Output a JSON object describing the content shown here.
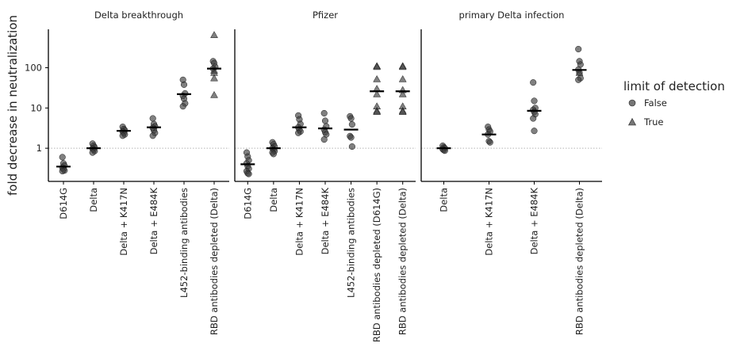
{
  "chart_data": {
    "type": "scatter",
    "ylabel": "fold decrease in neutralization",
    "y_scale": "log",
    "ylim": [
      0.15,
      900
    ],
    "y_ticks": [
      1,
      10,
      100
    ],
    "y_tick_labels": [
      "1",
      "10",
      "100"
    ],
    "reference_line_y": 1,
    "grid": false,
    "legend": {
      "title": "limit of detection",
      "position": "right",
      "entries": [
        {
          "label": "False",
          "marker": "circle"
        },
        {
          "label": "True",
          "marker": "triangle"
        }
      ]
    },
    "colors": {
      "points": "#3c3c3c",
      "median": "#000000",
      "reference": "#b4b4b4"
    },
    "panels": [
      {
        "title": "Delta breakthrough",
        "categories": [
          "D614G",
          "Delta",
          "Delta + K417N",
          "Delta + E484K",
          "L452-binding antibodies",
          "RBD antibodies depleted (Delta)"
        ],
        "medians": [
          0.35,
          1.0,
          2.7,
          3.3,
          22,
          95
        ],
        "points": [
          [
            0.6,
            0.42,
            0.37,
            0.33,
            0.3,
            0.28,
            0.27
          ],
          [
            1.3,
            1.15,
            1.05,
            0.98,
            0.92,
            0.85,
            0.78
          ],
          [
            3.4,
            3.0,
            2.8,
            2.6,
            2.4,
            2.2,
            2.05
          ],
          [
            5.5,
            4.0,
            3.5,
            3.2,
            2.8,
            2.4,
            2.05
          ],
          [
            50,
            38,
            23,
            20,
            17,
            13,
            11
          ],
          [
            145,
            130,
            105,
            95
          ]
        ],
        "triangles": [
          [],
          [],
          [],
          [],
          [],
          [
            650,
            85,
            75,
            55,
            21
          ]
        ]
      },
      {
        "title": "Pfizer",
        "categories": [
          "D614G",
          "Delta",
          "Delta + K417N",
          "Delta + E484K",
          "L452-binding antibodies",
          "RBD antibodies depleted (D614G)",
          "RBD antibodies depleted (Delta)"
        ],
        "medians": [
          0.4,
          1.0,
          3.3,
          3.1,
          2.9,
          26,
          26
        ],
        "points": [
          [
            0.78,
            0.62,
            0.5,
            0.42,
            0.36,
            0.31,
            0.27,
            0.24,
            0.23
          ],
          [
            1.4,
            1.25,
            1.1,
            1.0,
            0.92,
            0.85,
            0.78,
            0.72
          ],
          [
            6.5,
            5.2,
            4.0,
            3.3,
            2.9,
            2.6,
            2.4
          ],
          [
            7.4,
            4.8,
            3.5,
            2.9,
            2.5,
            2.2,
            1.65
          ],
          [
            6.2,
            5.5,
            3.9,
            2.0,
            1.85,
            1.1
          ],
          [],
          []
        ],
        "triangles": [
          [],
          [],
          [],
          [],
          [],
          [
            110,
            105,
            52,
            30,
            22,
            11,
            8.5,
            8
          ],
          [
            110,
            105,
            52,
            28,
            22,
            11,
            8.5,
            8
          ]
        ]
      },
      {
        "title": "primary Delta infection",
        "categories": [
          "Delta",
          "Delta + K417N",
          "Delta + E484K",
          "RBD antibodies depleted (Delta)"
        ],
        "medians": [
          1.0,
          2.2,
          8.5,
          88
        ],
        "points": [
          [
            1.15,
            1.05,
            1.0,
            0.95,
            0.9,
            0.87
          ],
          [
            3.4,
            2.9,
            2.6,
            2.2,
            1.5,
            1.4
          ],
          [
            43,
            15,
            10,
            9,
            8,
            7,
            5.5,
            2.7
          ],
          [
            290,
            145,
            120,
            90,
            75,
            55,
            50
          ]
        ],
        "triangles": [
          [],
          [],
          [],
          [
            75
          ]
        ]
      }
    ]
  }
}
